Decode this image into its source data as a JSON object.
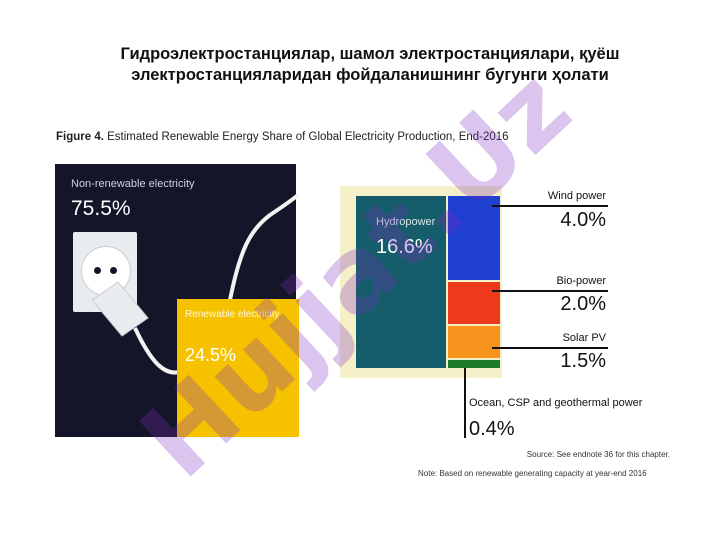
{
  "slide": {
    "title": "Гидроэлектростанциялар, шамол электростанциялари, қуёш электростанцияларидан фойдаланишнинг бугунги ҳолати"
  },
  "figure": {
    "caption_bold": "Figure 4.",
    "caption_rest": " Estimated Renewable Energy Share of Global Electricity Production, End-2016",
    "source": "Source: See endnote 36 for this chapter.",
    "note": "Note: Based on renewable generating capacity at year-end 2016"
  },
  "chart_data": {
    "type": "treemap",
    "title": "Estimated Renewable Energy Share of Global Electricity Production, End-2016",
    "unit": "%",
    "segments": [
      {
        "name": "Non-renewable electricity",
        "value": 75.5,
        "label": "75.5%",
        "color": "#141528"
      },
      {
        "name": "Renewable electricity",
        "value": 24.5,
        "label": "24.5%",
        "color": "#f6c200"
      }
    ],
    "renewable_breakdown": [
      {
        "name": "Hydropower",
        "value": 16.6,
        "label": "16.6%",
        "color": "#155d6a"
      },
      {
        "name": "Wind power",
        "value": 4.0,
        "label": "4.0%",
        "color": "#1f3fd1"
      },
      {
        "name": "Bio-power",
        "value": 2.0,
        "label": "2.0%",
        "color": "#ee3a1c"
      },
      {
        "name": "Solar PV",
        "value": 1.5,
        "label": "1.5%",
        "color": "#f7941d"
      },
      {
        "name": "Ocean, CSP and geothermal power",
        "value": 0.4,
        "label": "0.4%",
        "color": "#1f7a2c"
      }
    ]
  },
  "watermark": {
    "text": "Hujjat.Uz",
    "color": "#7e2bbd"
  }
}
